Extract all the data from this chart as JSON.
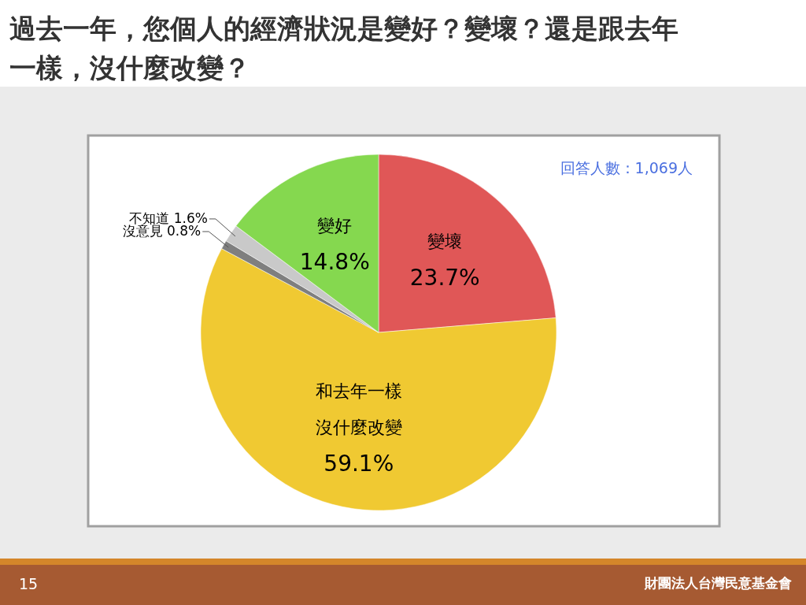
{
  "chart_data": {
    "type": "pie",
    "title": "過去一年，您個人的經濟狀況是變好？變壞？還是跟去年一樣，沒什麼改變？",
    "categories": [
      "變壞",
      "和去年一樣沒什麼改變",
      "沒意見",
      "不知道",
      "變好"
    ],
    "values": [
      23.7,
      59.1,
      0.8,
      1.6,
      14.8
    ],
    "colors": [
      "#e05757",
      "#f0c932",
      "#7f7f7f",
      "#c9c9c9",
      "#85d84f"
    ],
    "value_labels": [
      "23.7%",
      "59.1%",
      "0.8%",
      "1.6%",
      "14.8%"
    ],
    "annotations": [
      "回答人數：1,069人",
      "15",
      "財團法人台灣民意基金會"
    ]
  }
}
